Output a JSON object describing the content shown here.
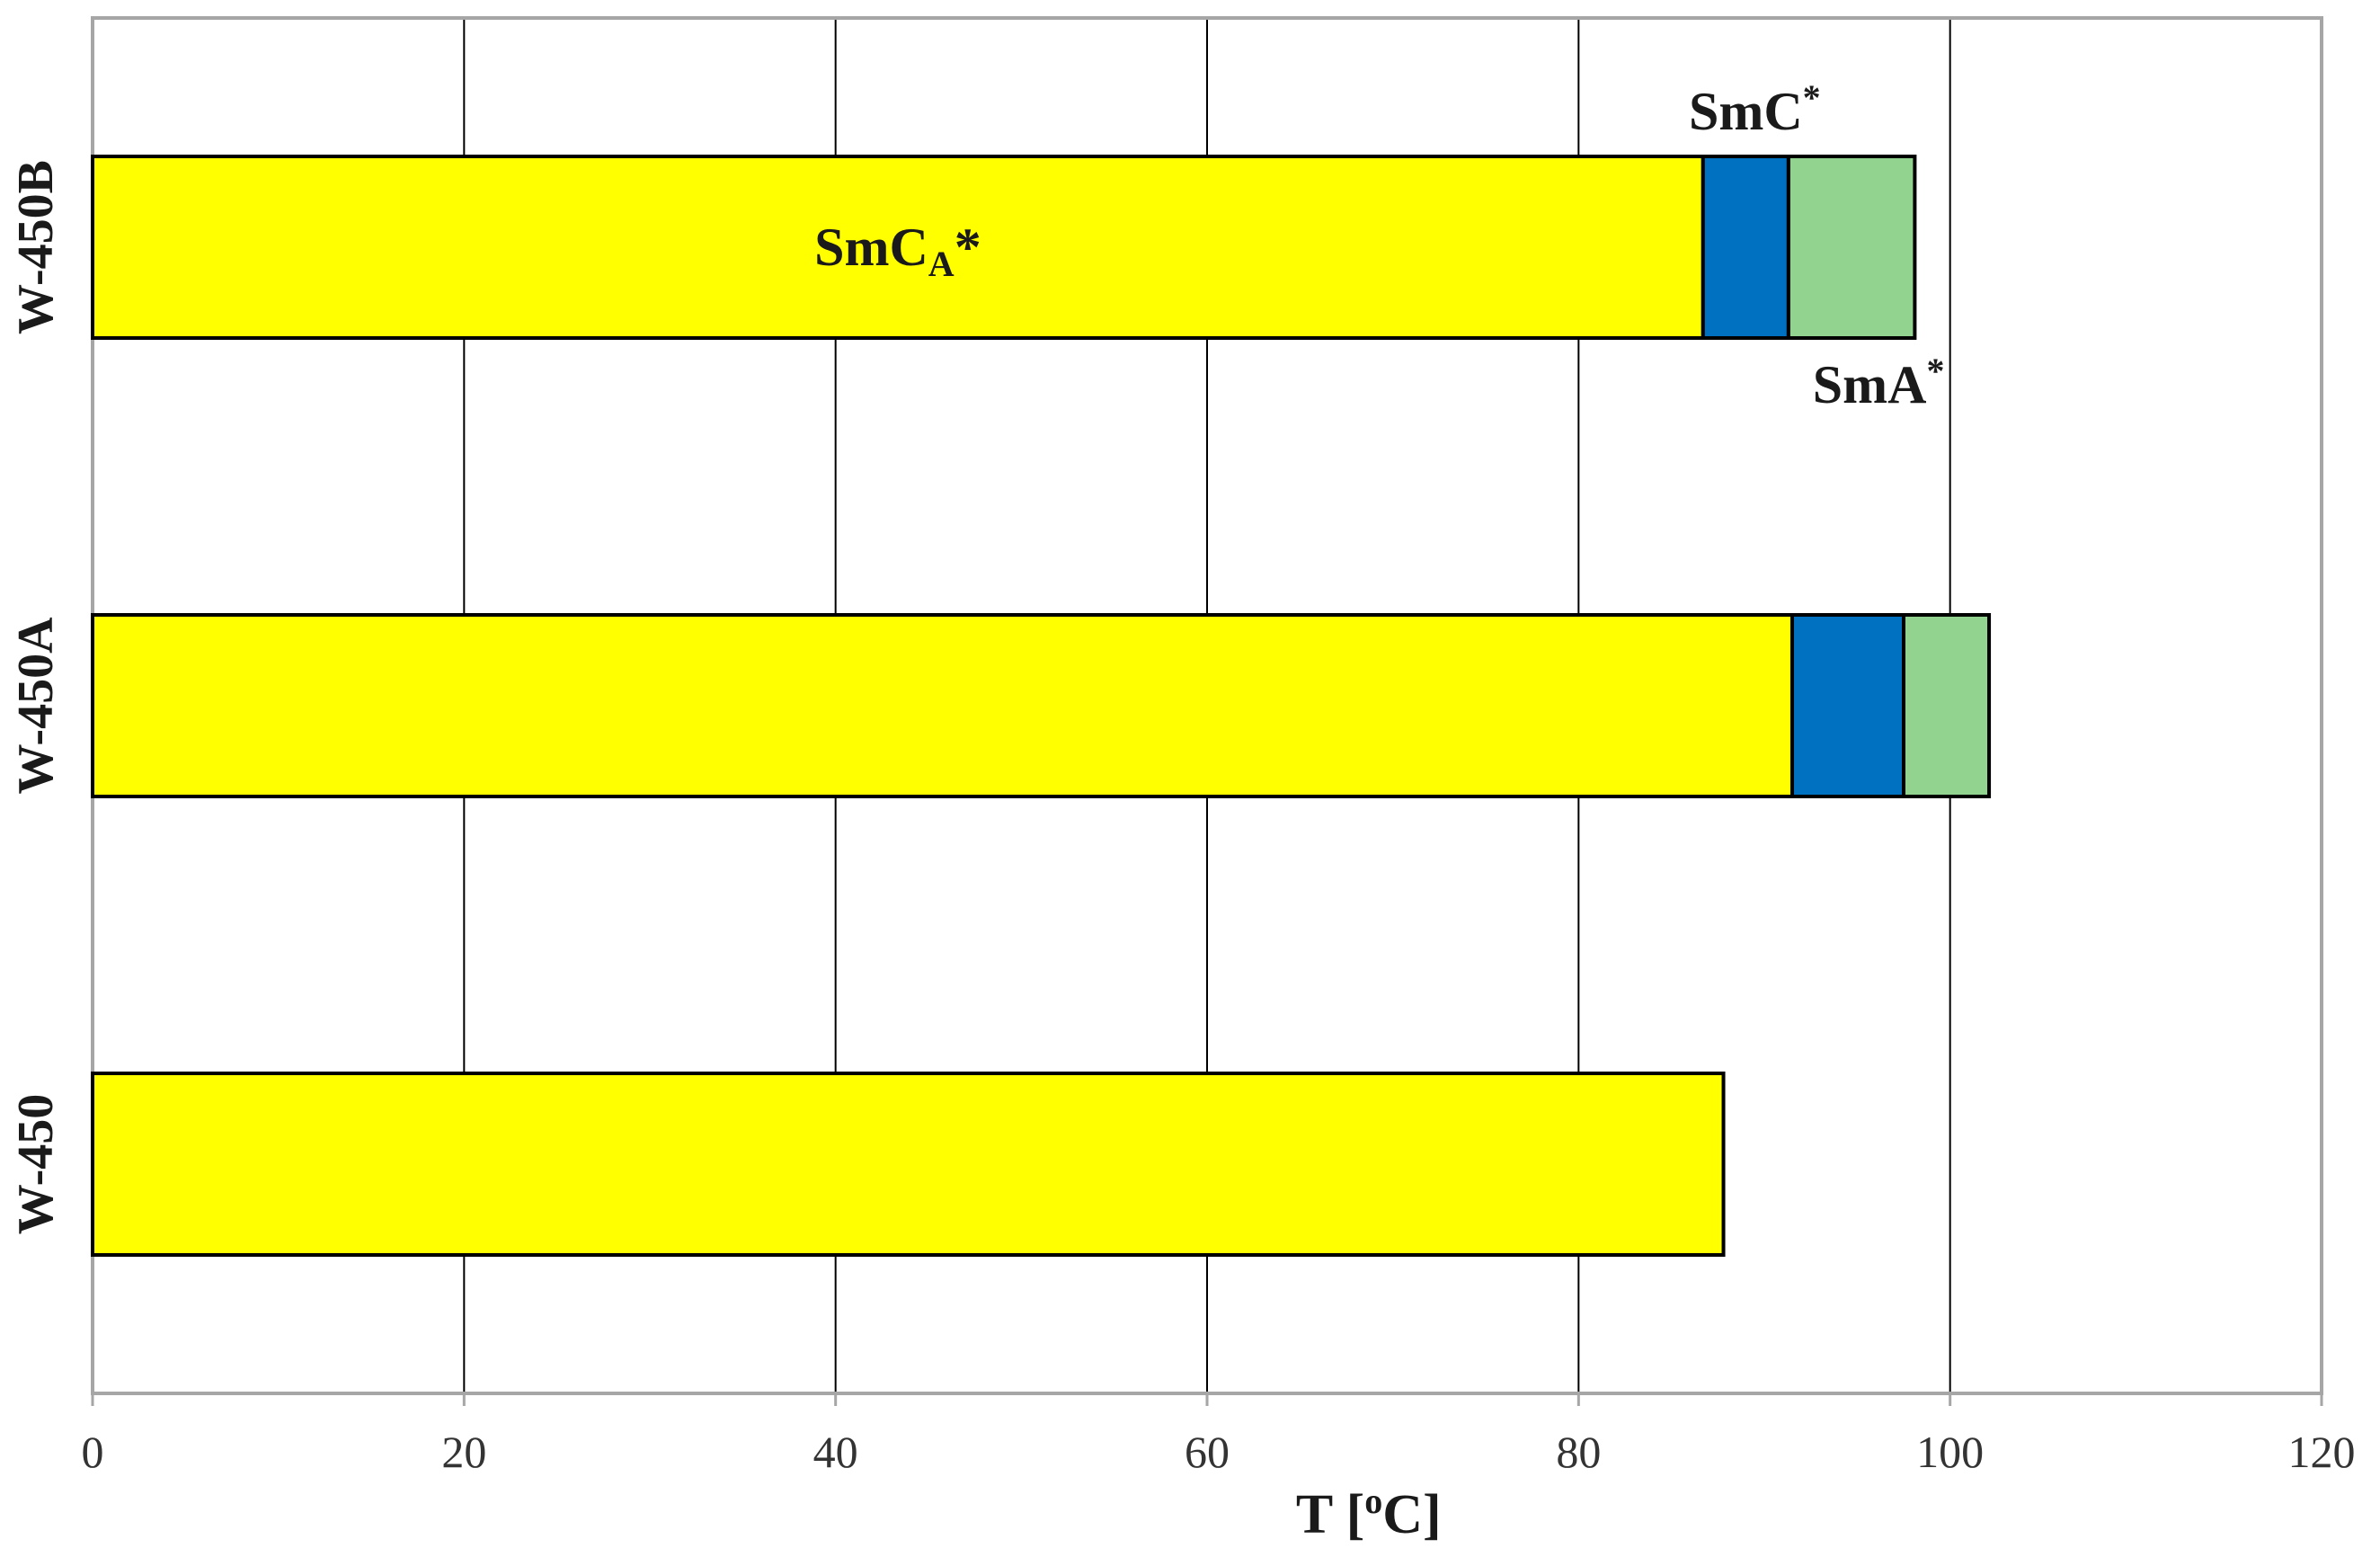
{
  "chart_data": {
    "type": "bar",
    "orientation": "horizontal",
    "stacked": true,
    "categories": [
      "W-450B",
      "W-450A",
      "W-450"
    ],
    "series": [
      {
        "name": "SmC_A*",
        "color": "#ffff00",
        "values": [
          86.7,
          91.5,
          87.8
        ]
      },
      {
        "name": "SmC*",
        "color": "#0070c0",
        "values": [
          4.6,
          6.0,
          0
        ]
      },
      {
        "name": "SmA*",
        "color": "#92d390",
        "values": [
          6.8,
          4.6,
          0
        ]
      }
    ],
    "xlabel": "T [oC]",
    "xlim": [
      0,
      120
    ],
    "xticks": [
      "0",
      "20",
      "40",
      "60",
      "80",
      "100",
      "120"
    ],
    "grid": true,
    "annotations": {
      "smca": {
        "base": "SmC",
        "sub": "A",
        "sup": "*"
      },
      "smc": {
        "base": "SmC",
        "sup": "*"
      },
      "sma": {
        "base": "SmA",
        "sup": "*"
      }
    },
    "colors": {
      "grid": "#000000",
      "frame": "#a6a6a6"
    }
  }
}
